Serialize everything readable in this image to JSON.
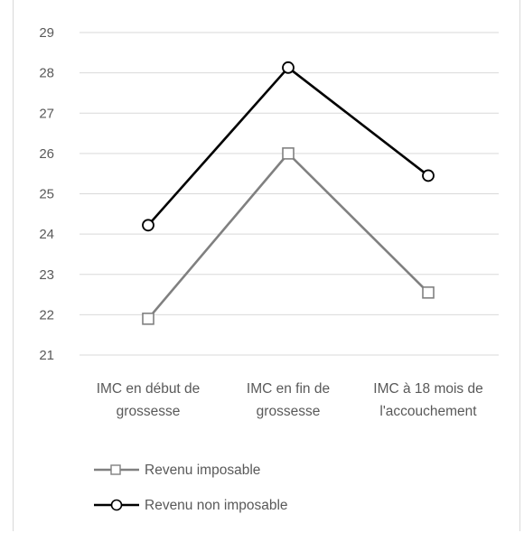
{
  "chart_data": {
    "type": "line",
    "title": "",
    "xlabel": "",
    "ylabel": "",
    "ylim": [
      21,
      29
    ],
    "yticks": [
      "21",
      "22",
      "23",
      "24",
      "25",
      "26",
      "27",
      "28",
      "29"
    ],
    "grid": true,
    "legend_position": "bottom-left",
    "categories": [
      [
        "IMC en début de",
        "grossesse"
      ],
      [
        "IMC en fin de",
        "grossesse"
      ],
      [
        "IMC à 18 mois de",
        "l'accouchement"
      ]
    ],
    "series": [
      {
        "name": "Revenu imposable",
        "values": [
          21.9,
          26.0,
          22.55
        ],
        "color": "#808080",
        "marker": "square"
      },
      {
        "name": "Revenu non imposable",
        "values": [
          24.22,
          28.13,
          25.45
        ],
        "color": "#000000",
        "marker": "circle"
      }
    ]
  }
}
